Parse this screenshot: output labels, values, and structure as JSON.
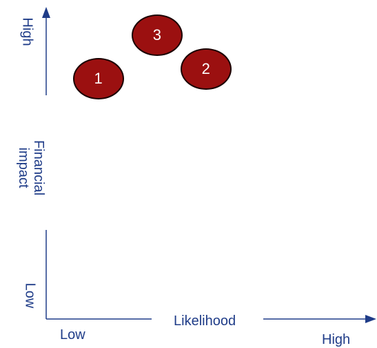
{
  "axes": {
    "y_high": "High",
    "y_label": "Financial impact",
    "y_low": "Low",
    "x_low": "Low",
    "x_label": "Likelihood",
    "x_high": "High"
  },
  "risks": [
    {
      "label": "1",
      "likelihood": 0.16,
      "impact": 0.77
    },
    {
      "label": "2",
      "likelihood": 0.49,
      "impact": 0.8
    },
    {
      "label": "3",
      "likelihood": 0.34,
      "impact": 0.91
    }
  ],
  "colors": {
    "axis": "#1f3c88",
    "bubble": "#9b1010",
    "bubble_outline": "#1a0000"
  }
}
